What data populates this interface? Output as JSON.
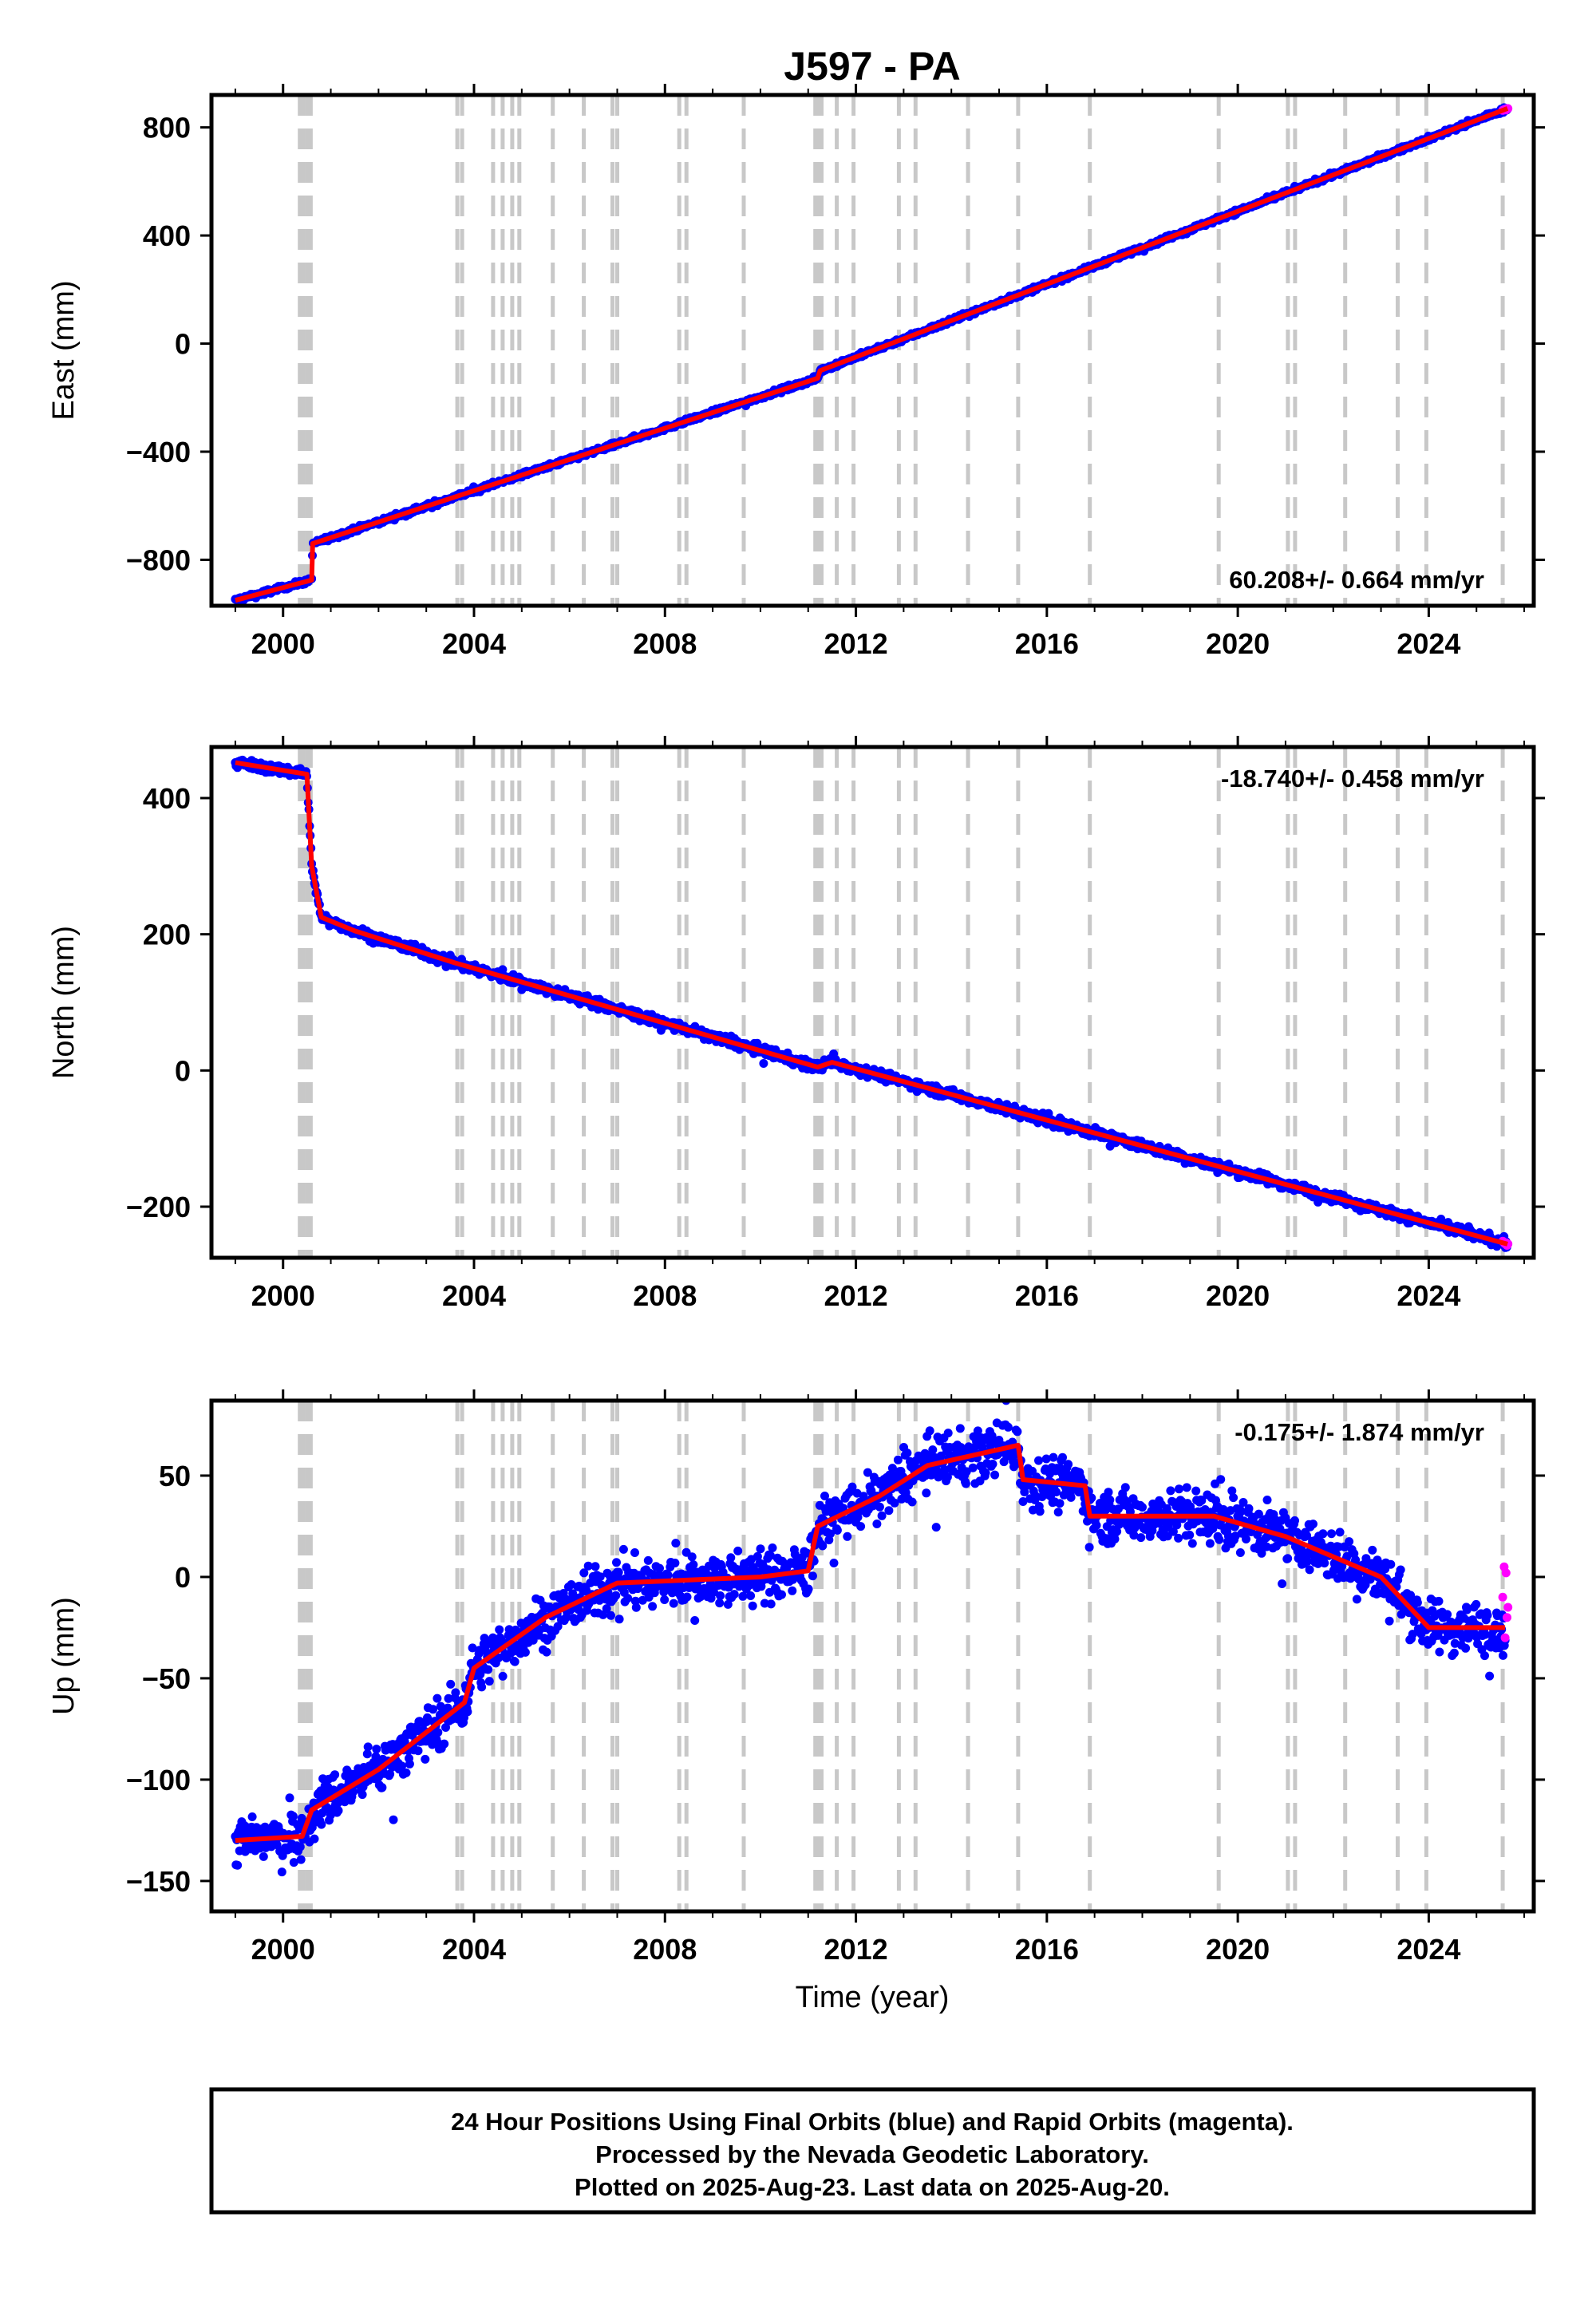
{
  "title": "J597 - PA",
  "xlabel": "Time (year)",
  "footer": [
    "24 Hour Positions Using Final Orbits (blue) and Rapid Orbits (magenta).",
    "Processed by the Nevada Geodetic Laboratory.",
    "Plotted on 2025-Aug-23. Last data on 2025-Aug-20."
  ],
  "colors": {
    "final": "#0000ff",
    "rapid": "#ff00ff",
    "model": "#ff0000",
    "event_lines": "#c8c8c8"
  },
  "chart_data": [
    {
      "type": "scatter",
      "name": "east",
      "ylabel": "East (mm)",
      "xlim": [
        1998.5,
        2026.2
      ],
      "ylim": [
        -970,
        920
      ],
      "xticks": [
        2000,
        2004,
        2008,
        2012,
        2016,
        2020,
        2024
      ],
      "yticks": [
        -800,
        -400,
        0,
        400,
        800
      ],
      "rate": "60.208+/- 0.664 mm/yr",
      "rate_position": "bottom-right",
      "model": [
        [
          1999.0,
          -950
        ],
        [
          2000.6,
          -875
        ],
        [
          2000.62,
          -740
        ],
        [
          2011.2,
          -128
        ],
        [
          2011.25,
          -100
        ],
        [
          2025.65,
          870
        ]
      ],
      "noise": 6,
      "grid": false
    },
    {
      "type": "scatter",
      "name": "north",
      "ylabel": "North (mm)",
      "xlim": [
        1998.5,
        2026.2
      ],
      "ylim": [
        -275,
        475
      ],
      "xticks": [
        2000,
        2004,
        2008,
        2012,
        2016,
        2020,
        2024
      ],
      "yticks": [
        -200,
        0,
        200,
        400
      ],
      "rate": "-18.740+/- 0.458 mm/yr",
      "rate_position": "top-right",
      "model": [
        [
          1999.0,
          452
        ],
        [
          2000.5,
          435
        ],
        [
          2000.6,
          300
        ],
        [
          2000.8,
          225
        ],
        [
          2001.5,
          205
        ],
        [
          2003.6,
          158
        ],
        [
          2011.2,
          5
        ],
        [
          2011.5,
          12
        ],
        [
          2025.65,
          -255
        ]
      ],
      "noise": 5,
      "grid": false
    },
    {
      "type": "scatter",
      "name": "up",
      "ylabel": "Up (mm)",
      "xlim": [
        1998.5,
        2026.2
      ],
      "ylim": [
        -165,
        87
      ],
      "xticks": [
        2000,
        2004,
        2008,
        2012,
        2016,
        2020,
        2024
      ],
      "yticks": [
        -150,
        -100,
        -50,
        0,
        50
      ],
      "rate": "-0.175+/- 1.874 mm/yr",
      "rate_position": "top-right",
      "model": [
        [
          1999.0,
          -130
        ],
        [
          2000.4,
          -128
        ],
        [
          2000.6,
          -115
        ],
        [
          2002.0,
          -95
        ],
        [
          2003.8,
          -62
        ],
        [
          2004.0,
          -45
        ],
        [
          2005.5,
          -20
        ],
        [
          2007.0,
          -3
        ],
        [
          2010.0,
          0
        ],
        [
          2011.0,
          3
        ],
        [
          2011.2,
          25
        ],
        [
          2012.5,
          40
        ],
        [
          2013.5,
          55
        ],
        [
          2015.4,
          65
        ],
        [
          2015.5,
          48
        ],
        [
          2016.8,
          45
        ],
        [
          2016.9,
          30
        ],
        [
          2019.5,
          30
        ],
        [
          2021.0,
          20
        ],
        [
          2023.0,
          0
        ],
        [
          2024.0,
          -25
        ],
        [
          2025.6,
          -25
        ]
      ],
      "noise": 9,
      "grid": false
    }
  ],
  "event_lines": [
    2000.35,
    2000.42,
    2000.5,
    2000.58,
    2003.65,
    2003.75,
    2004.4,
    2004.6,
    2004.8,
    2004.95,
    2005.65,
    2006.3,
    2006.9,
    2007.0,
    2008.3,
    2008.45,
    2009.65,
    2011.15,
    2011.22,
    2011.28,
    2011.6,
    2011.95,
    2012.9,
    2013.25,
    2014.35,
    2015.4,
    2016.9,
    2019.6,
    2021.05,
    2021.2,
    2022.25,
    2023.35,
    2023.95,
    2025.55
  ],
  "rapid_points": [
    [
      2025.55,
      -10
    ],
    [
      2025.58,
      5
    ],
    [
      2025.6,
      -30
    ],
    [
      2025.62,
      2
    ],
    [
      2025.64,
      -20
    ],
    [
      2025.66,
      -15
    ]
  ]
}
